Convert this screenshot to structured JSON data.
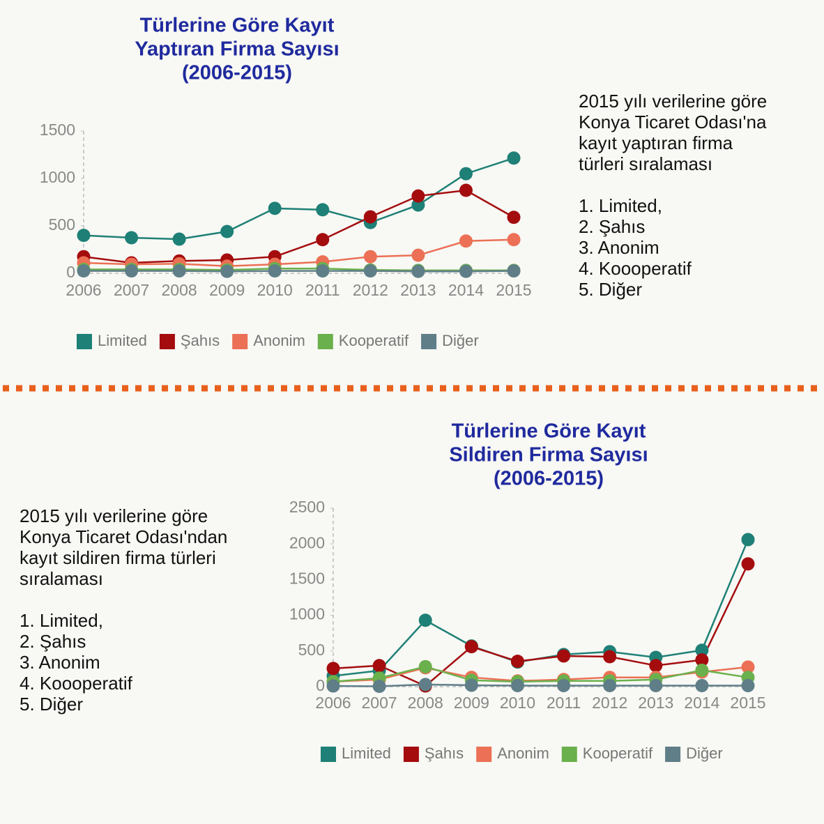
{
  "chart_data": [
    {
      "type": "line",
      "title": [
        "Türlerine Göre Kayıt",
        "Yaptıran Firma Sayısı",
        "(2006-2015)"
      ],
      "annotation": [
        "2015 yılı verilerine göre",
        "Konya Ticaret Odası'na",
        "kayıt yaptıran firma",
        "türleri sıralaması"
      ],
      "ranking": [
        "1. Limited,",
        "2. Şahıs",
        "3. Anonim",
        "4. Koooperatif",
        "5. Diğer"
      ],
      "categories": [
        "2006",
        "2007",
        "2008",
        "2009",
        "2010",
        "2011",
        "2012",
        "2013",
        "2014",
        "2015"
      ],
      "ylim": [
        0,
        1500
      ],
      "yticks": [
        0,
        500,
        1000,
        1500
      ],
      "series": [
        {
          "name": "Limited",
          "color": "#1e8076",
          "values": [
            400,
            375,
            360,
            440,
            685,
            670,
            535,
            720,
            1050,
            1215
          ]
        },
        {
          "name": "Şahıs",
          "color": "#a40c0e",
          "values": [
            175,
            110,
            130,
            140,
            175,
            355,
            595,
            815,
            875,
            590
          ]
        },
        {
          "name": "Anonim",
          "color": "#ec7055",
          "values": [
            110,
            95,
            100,
            75,
            95,
            120,
            175,
            190,
            340,
            355
          ]
        },
        {
          "name": "Kooperatif",
          "color": "#6ab04c",
          "values": [
            40,
            40,
            40,
            35,
            50,
            50,
            35,
            30,
            30,
            30
          ]
        },
        {
          "name": "Diğer",
          "color": "#5f7e88",
          "values": [
            25,
            25,
            25,
            20,
            25,
            25,
            25,
            20,
            20,
            25
          ]
        }
      ]
    },
    {
      "type": "line",
      "title": [
        "Türlerine Göre Kayıt",
        "Sildiren Firma Sayısı",
        "(2006-2015)"
      ],
      "annotation": [
        "2015 yılı verilerine göre",
        "Konya Ticaret Odası'ndan",
        "kayıt sildiren firma türleri",
        "sıralaması"
      ],
      "ranking": [
        "1. Limited,",
        "2. Şahıs",
        "3. Anonim",
        "4. Koooperatif",
        "5. Diğer"
      ],
      "categories": [
        "2006",
        "2007",
        "2008",
        "2009",
        "2010",
        "2011",
        "2012",
        "2013",
        "2014",
        "2015"
      ],
      "ylim": [
        0,
        2500
      ],
      "yticks": [
        0,
        500,
        1000,
        1500,
        2000,
        2500
      ],
      "series": [
        {
          "name": "Limited",
          "color": "#1e8076",
          "values": [
            150,
            225,
            930,
            570,
            345,
            450,
            490,
            410,
            510,
            2060
          ]
        },
        {
          "name": "Şahıs",
          "color": "#a40c0e",
          "values": [
            255,
            295,
            10,
            560,
            355,
            430,
            420,
            295,
            375,
            1720
          ]
        },
        {
          "name": "Anonim",
          "color": "#ec7055",
          "values": [
            70,
            100,
            265,
            130,
            80,
            100,
            130,
            130,
            205,
            275
          ]
        },
        {
          "name": "Kooperatif",
          "color": "#6ab04c",
          "values": [
            70,
            120,
            280,
            90,
            70,
            80,
            80,
            100,
            230,
            130
          ]
        },
        {
          "name": "Diğer",
          "color": "#5f7e88",
          "values": [
            10,
            5,
            30,
            20,
            15,
            15,
            15,
            15,
            15,
            15
          ]
        }
      ]
    }
  ]
}
